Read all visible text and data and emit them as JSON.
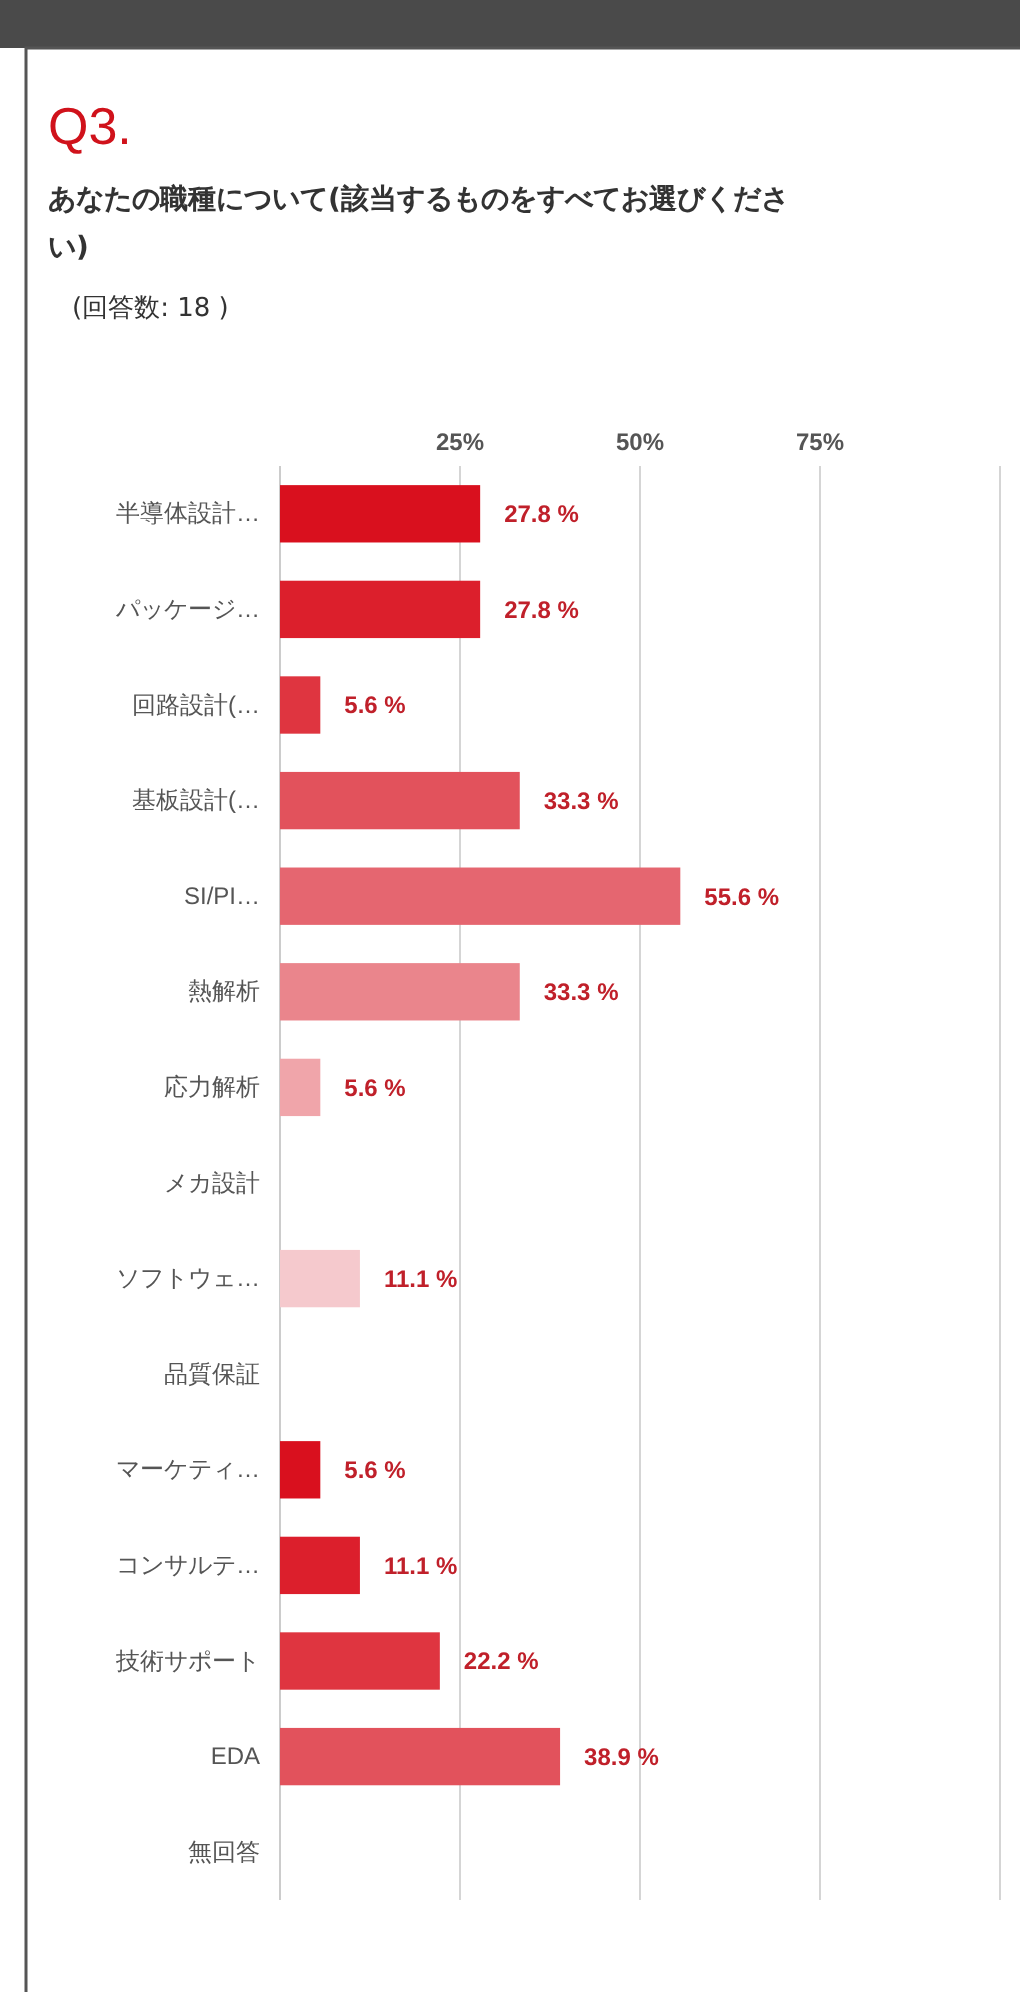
{
  "chart_data": {
    "type": "bar",
    "orientation": "horizontal",
    "title": "Q3.",
    "subtitle": "あなたの職種について(該当するものをすべてお選びください)",
    "annotations": [
      "(回答数: 18 )"
    ],
    "categories": [
      "半導体設計…",
      "パッケージ…",
      "回路設計(…",
      "基板設計(…",
      "SI/PI…",
      "熱解析",
      "応力解析",
      "メカ設計",
      "ソフトウェ…",
      "品質保証",
      "マーケティ…",
      "コンサルテ…",
      "技術サポート",
      "EDA",
      "無回答"
    ],
    "values": [
      27.8,
      27.8,
      5.6,
      33.3,
      55.6,
      33.3,
      5.6,
      0,
      11.1,
      0,
      5.6,
      11.1,
      22.2,
      38.9,
      0
    ],
    "value_labels": [
      "27.8 %",
      "27.8 %",
      "5.6 %",
      "33.3 %",
      "55.6 %",
      "33.3 %",
      "5.6 %",
      null,
      "11.1 %",
      null,
      "5.6 %",
      "11.1 %",
      "22.2 %",
      "38.9 %",
      null
    ],
    "colors": [
      "#d9101e",
      "#dc1f2c",
      "#df3540",
      "#e2525c",
      "#e56670",
      "#ea858c",
      "#f0a5aa",
      "#f3b7bb",
      "#f5c9cd",
      "#d9101e",
      "#d9101e",
      "#dc1f2c",
      "#df3540",
      "#e2525c",
      "#e56670"
    ],
    "xlim": [
      0,
      100
    ],
    "xticks": [
      {
        "value": 0,
        "label": null
      },
      {
        "value": 25,
        "label": "25%"
      },
      {
        "value": 50,
        "label": "50%"
      },
      {
        "value": 75,
        "label": "75%"
      },
      {
        "value": 100,
        "label": null
      }
    ],
    "grid": "x"
  }
}
